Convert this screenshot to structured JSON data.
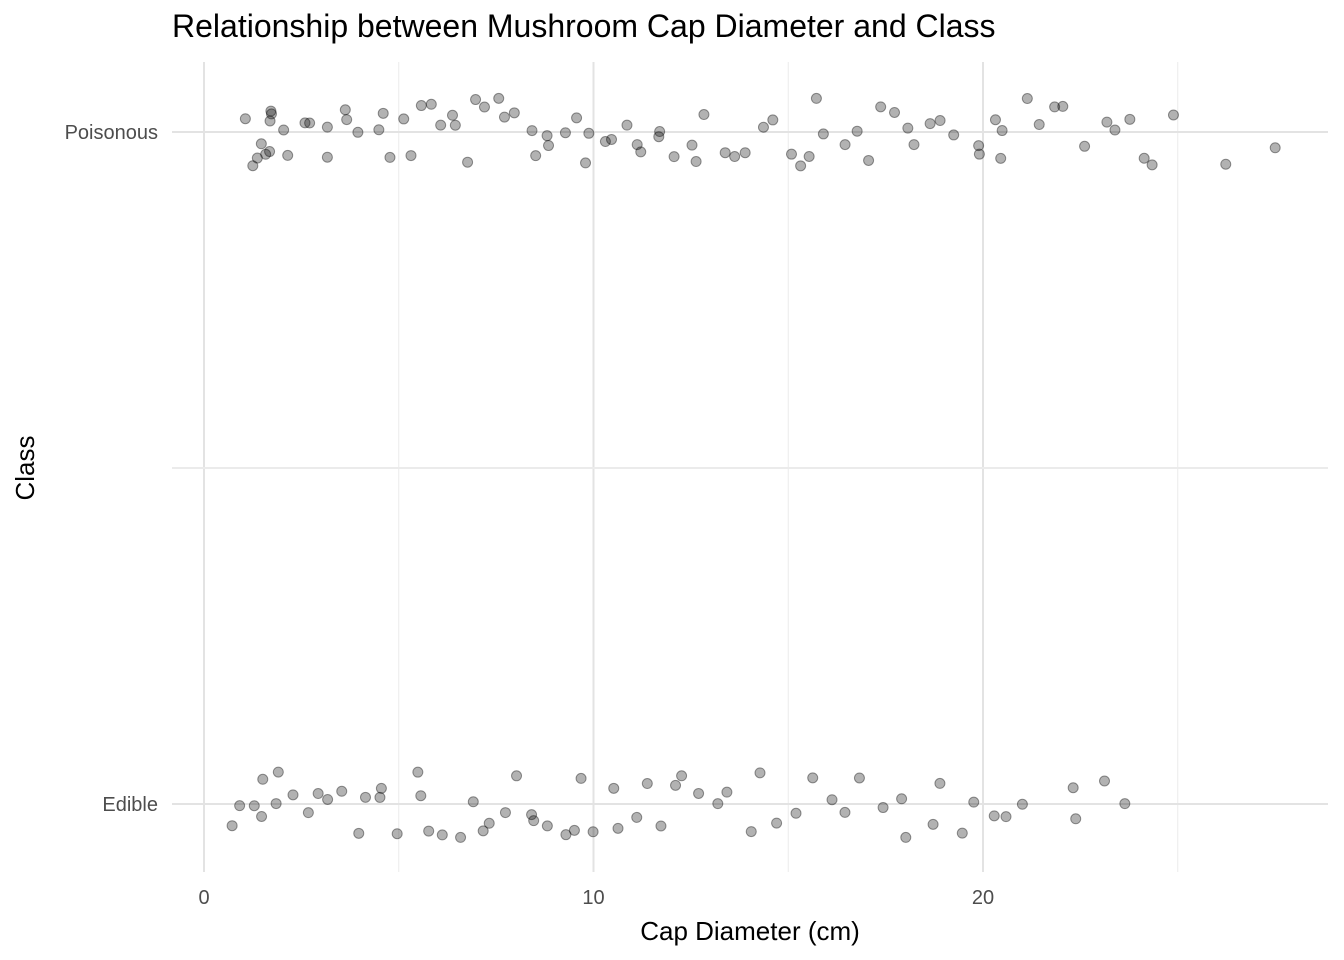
{
  "chart_data": {
    "type": "scatter",
    "title": "Relationship between Mushroom Cap Diameter and Class",
    "xlabel": "Cap Diameter (cm)",
    "ylabel": "Class",
    "categories": [
      "Edible",
      "Poisonous"
    ],
    "xlim": [
      -0.8,
      28.5
    ],
    "x_ticks": [
      0,
      10,
      20
    ],
    "grid": true,
    "point_color": "#000000",
    "point_opacity": 0.3,
    "jitter": 0.1,
    "series": [
      {
        "category": "Poisonous",
        "x": [
          1.0,
          1.2,
          1.4,
          1.5,
          1.5,
          1.6,
          1.6,
          1.7,
          1.8,
          2.0,
          2.2,
          2.5,
          2.8,
          3.0,
          3.2,
          3.5,
          3.8,
          4.0,
          4.3,
          4.5,
          4.8,
          5.0,
          5.3,
          5.5,
          5.8,
          6.0,
          6.3,
          6.5,
          6.8,
          7.0,
          7.3,
          7.5,
          7.8,
          8.0,
          8.3,
          8.5,
          8.8,
          9.0,
          9.3,
          9.5,
          9.8,
          10.0,
          10.3,
          10.5,
          10.8,
          11.0,
          11.3,
          11.5,
          11.8,
          12.0,
          12.5,
          12.8,
          13.0,
          13.4,
          13.7,
          14.0,
          14.4,
          14.8,
          15.0,
          15.2,
          15.5,
          15.8,
          16.0,
          16.4,
          16.7,
          17.0,
          17.3,
          17.7,
          18.0,
          18.3,
          18.7,
          19.0,
          19.4,
          19.7,
          19.9,
          20.2,
          20.5,
          20.6,
          21.2,
          21.4,
          22.0,
          22.2,
          22.5,
          23.1,
          23.5,
          23.6,
          24.3,
          24.4,
          25.0,
          26.2,
          27.6
        ]
      },
      {
        "category": "Edible",
        "x": [
          0.8,
          1.0,
          1.2,
          1.4,
          1.6,
          1.8,
          2.0,
          2.3,
          2.6,
          2.9,
          3.2,
          3.5,
          3.8,
          4.1,
          4.4,
          4.7,
          5.0,
          5.3,
          5.6,
          5.9,
          6.2,
          6.5,
          6.8,
          7.1,
          7.4,
          7.7,
          8.0,
          8.3,
          8.6,
          8.9,
          9.2,
          9.5,
          9.8,
          10.1,
          10.4,
          10.7,
          11.0,
          11.3,
          11.6,
          12.0,
          12.4,
          12.8,
          13.2,
          13.6,
          14.0,
          14.4,
          14.8,
          15.2,
          15.6,
          16.0,
          16.4,
          16.9,
          17.4,
          17.8,
          18.2,
          18.6,
          19.0,
          19.4,
          19.8,
          20.1,
          20.6,
          21.0,
          22.3,
          22.4,
          23.3,
          23.5
        ]
      }
    ]
  }
}
